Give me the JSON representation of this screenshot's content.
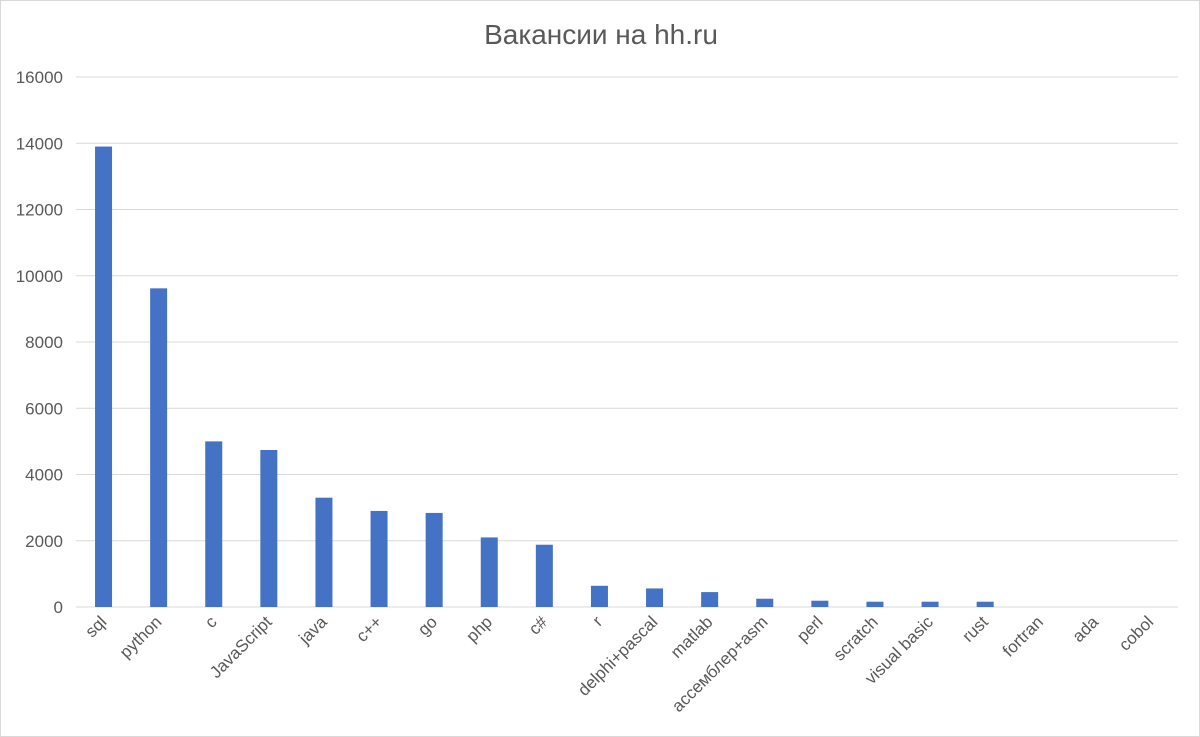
{
  "chart_data": {
    "type": "bar",
    "title": "Вакансии на hh.ru",
    "xlabel": "",
    "ylabel": "",
    "categories": [
      "sql",
      "python",
      "c",
      "JavaScript",
      "java",
      "c++",
      "go",
      "php",
      "c#",
      "r",
      "delphi+pascal",
      "matlab",
      "ассемблер+asm",
      "perl",
      "scratch",
      "visual basic",
      "rust",
      "fortran",
      "ada",
      "cobol"
    ],
    "values": [
      13900,
      9620,
      5000,
      4740,
      3300,
      2900,
      2840,
      2100,
      1880,
      640,
      560,
      450,
      250,
      190,
      160,
      160,
      160,
      0,
      0,
      0
    ],
    "ylim": [
      0,
      16000
    ],
    "yticks": [
      "0",
      "2000",
      "4000",
      "6000",
      "8000",
      "10000",
      "12000",
      "14000",
      "16000"
    ],
    "grid": true,
    "legend": "none",
    "colors": {
      "bar": "#4472c4",
      "grid": "#d9d9d9",
      "text": "#595959"
    }
  }
}
